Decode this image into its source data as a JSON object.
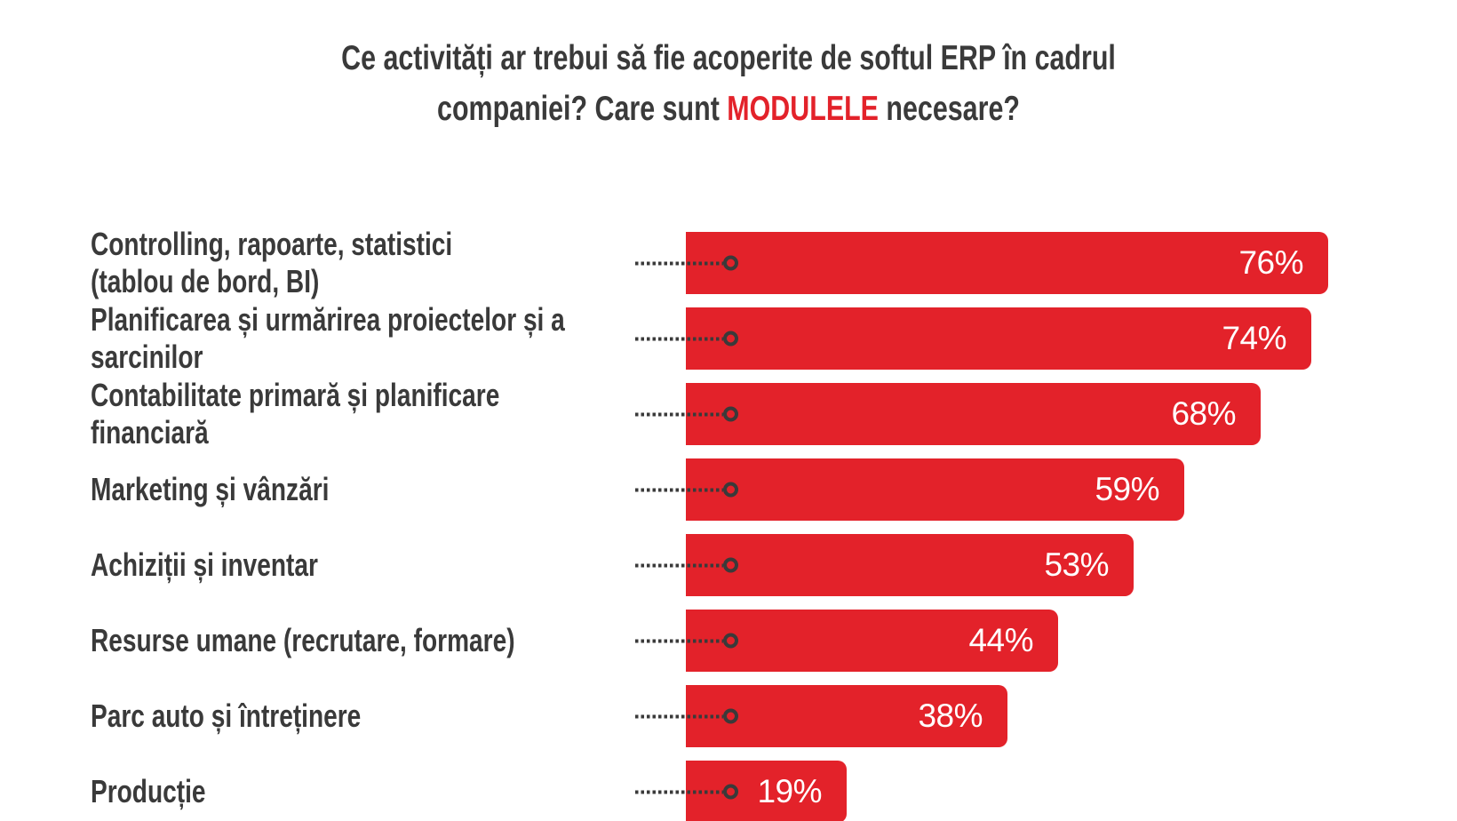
{
  "title": {
    "line1": "Ce activități ar trebui să fie acoperite de softul ERP în cadrul",
    "line2_before": "companiei? Care sunt ",
    "line2_highlight": "MODULELE",
    "line2_after": " necesare?"
  },
  "colors": {
    "bar_red": "#E3222A",
    "text_dark": "#3A3A3A",
    "value_text": "#FFFFFF",
    "background": "#FFFFFF",
    "leader_line": "#3A3A3A",
    "title_highlight": "#E3222A"
  },
  "chart_data": {
    "type": "bar",
    "orientation": "horizontal",
    "unit": "%",
    "grid": false,
    "legend": false,
    "axes_visible": false,
    "value_range": [
      0,
      100
    ],
    "title": "Ce activități ar trebui să fie acoperite de softul ERP în cadrul companiei? Care sunt MODULELE necesare?",
    "categories": [
      "Controlling, rapoarte, statistici\n(tablou de bord, BI)",
      "Planificarea și urmărirea proiectelor și a\nsarcinilor",
      "Contabilitate primară și planificare\nfinanciară",
      "Marketing și vânzări",
      "Achiziții și inventar",
      "Resurse umane (recrutare, formare)",
      "Parc auto și întreținere",
      "Producție"
    ],
    "values": [
      76,
      74,
      68,
      59,
      53,
      44,
      38,
      19
    ],
    "value_labels": [
      "76%",
      "74%",
      "68%",
      "59%",
      "53%",
      "44%",
      "38%",
      "19%"
    ],
    "marker": "dotted-leader-with-ring"
  }
}
